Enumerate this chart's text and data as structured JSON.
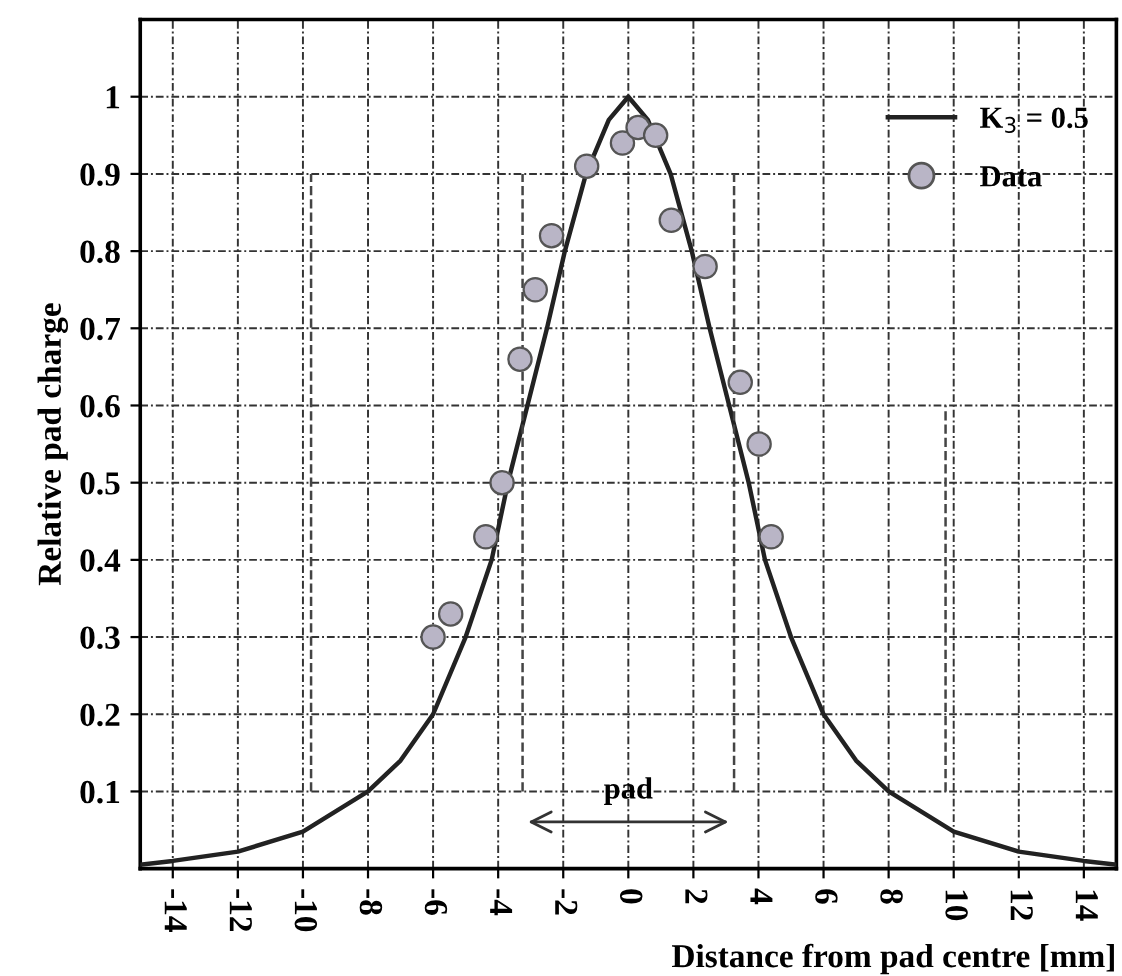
{
  "chart_data": {
    "type": "line",
    "xlabel": "Distance from pad centre [mm]",
    "ylabel": "Relative pad charge",
    "xlim": [
      -15,
      15
    ],
    "ylim": [
      0,
      1.1
    ],
    "xticks": [
      -14,
      -12,
      -10,
      -8,
      -6,
      -4,
      -2,
      0,
      2,
      4,
      6,
      8,
      10,
      12,
      14
    ],
    "yticks": [
      0.1,
      0.2,
      0.3,
      0.4,
      0.5,
      0.6,
      0.7,
      0.8,
      0.9,
      1
    ],
    "grid": true,
    "legend": "top right",
    "annotations": [
      "pad"
    ],
    "series": [
      {
        "name": "K$_{3}$ = 0.5",
        "color": "#222222",
        "line_style": "solid",
        "marker": "none",
        "x": [
          -15,
          -14,
          -12,
          -10,
          -8,
          -7,
          -6,
          -5,
          -4.2,
          -3.7,
          -3.1,
          -2.5,
          -1.95,
          -1.3,
          -0.6,
          0,
          0.6,
          1.3,
          1.95,
          2.5,
          3.1,
          3.7,
          4.2,
          5,
          6,
          7,
          8,
          10,
          12,
          14,
          15
        ],
        "values": [
          0.005,
          0.01,
          0.022,
          0.048,
          0.1,
          0.14,
          0.2,
          0.3,
          0.4,
          0.5,
          0.6,
          0.7,
          0.8,
          0.9,
          0.97,
          1.0,
          0.97,
          0.9,
          0.8,
          0.7,
          0.6,
          0.5,
          0.4,
          0.3,
          0.2,
          0.14,
          0.1,
          0.048,
          0.022,
          0.01,
          0.005
        ]
      },
      {
        "name": "Data",
        "type": "scatter",
        "color": "#b9b5c6",
        "marker": "circle",
        "x": [
          -6.0,
          -5.46,
          -4.38,
          -3.88,
          -3.33,
          -2.86,
          -2.36,
          -1.28,
          -0.18,
          0.3,
          0.84,
          1.32,
          2.36,
          3.44,
          4.02,
          4.39
        ],
        "values": [
          0.3,
          0.33,
          0.43,
          0.5,
          0.66,
          0.75,
          0.82,
          0.91,
          0.94,
          0.96,
          0.95,
          0.84,
          0.78,
          0.63,
          0.55,
          0.43
        ]
      },
      {
        "type": "line",
        "color": "#444444",
        "line_style": "dashed",
        "marker": "none",
        "x": [
          -9.75,
          -9.75
        ],
        "values": [
          0.1,
          0.9
        ]
      },
      {
        "type": "line",
        "color": "#444444",
        "line_style": "dashed",
        "marker": "none",
        "x": [
          -3.25,
          -3.25
        ],
        "values": [
          0.1,
          0.9
        ]
      },
      {
        "type": "line",
        "color": "#444444",
        "line_style": "dashed",
        "marker": "none",
        "x": [
          3.25,
          3.25
        ],
        "values": [
          0.1,
          0.9
        ]
      },
      {
        "type": "line",
        "color": "#444444",
        "line_style": "dashed",
        "marker": "none",
        "x": [
          9.75,
          9.75
        ],
        "values": [
          0.1,
          0.6
        ]
      }
    ]
  }
}
